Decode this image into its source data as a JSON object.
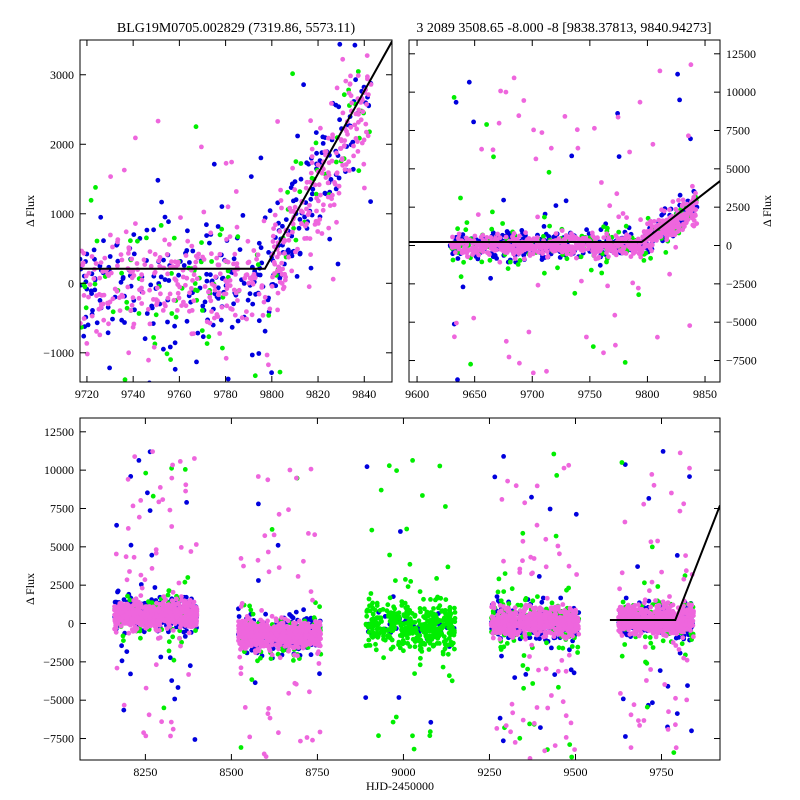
{
  "chart_data": [
    {
      "id": "top-left",
      "type": "scatter",
      "title": "BLG19M0705.002829 (7319.86, 5573.11)",
      "xlabel": "",
      "ylabel": "Δ Flux",
      "xlim": [
        9717,
        9852
      ],
      "ylim": [
        -1420,
        3500
      ],
      "xticks": [
        9720,
        9740,
        9760,
        9780,
        9800,
        9820,
        9840
      ],
      "yticks": [
        -1000,
        0,
        1000,
        2000,
        3000
      ],
      "ytick_side": "left",
      "series_colors": [
        "#0000dd",
        "#00ee00",
        "#ee66dd"
      ],
      "model": {
        "x": [
          9717,
          9797,
          9852
        ],
        "y": [
          210,
          210,
          3480
        ]
      },
      "segments": [
        {
          "x0": 9717,
          "x1": 9800,
          "base": 0,
          "slope": 0,
          "spread": [
            450,
            500,
            350
          ],
          "n": [
            190,
            70,
            260
          ],
          "outlier": 0.1
        },
        {
          "x0": 9800,
          "x1": 9843,
          "base": 200,
          "slope": 60,
          "spread": [
            450,
            450,
            400
          ],
          "n": [
            110,
            40,
            200
          ],
          "outlier": 0.08
        }
      ]
    },
    {
      "id": "top-right",
      "type": "scatter",
      "title": "3 2089 3508.65 -8.000 -8 [9838.37813, 9840.94273]",
      "xlabel": "",
      "ylabel": "Δ Flux",
      "xlim": [
        9593,
        9863
      ],
      "ylim": [
        -8900,
        13400
      ],
      "xticks": [
        9600,
        9650,
        9700,
        9750,
        9800,
        9850
      ],
      "yticks": [
        -7500,
        -5000,
        -2500,
        0,
        2500,
        5000,
        7500,
        10000,
        12500
      ],
      "ytick_side": "right",
      "series_colors": [
        "#0000dd",
        "#00ee00",
        "#ee66dd"
      ],
      "model": {
        "x": [
          9593,
          9795,
          9863
        ],
        "y": [
          230,
          230,
          4200
        ]
      },
      "segments": [
        {
          "x0": 9628,
          "x1": 9797,
          "base": 0,
          "slope": 0,
          "spread": [
            420,
            700,
            350
          ],
          "n": [
            320,
            120,
            520
          ],
          "outlier": 0.08
        },
        {
          "x0": 9797,
          "x1": 9843,
          "base": 300,
          "slope": 48,
          "spread": [
            500,
            500,
            450
          ],
          "n": [
            110,
            40,
            200
          ],
          "outlier": 0.06
        }
      ]
    },
    {
      "id": "bottom",
      "type": "scatter",
      "title": "",
      "xlabel": "HJD-2450000",
      "ylabel": "Δ Flux",
      "xlim": [
        8060,
        9920
      ],
      "ylim": [
        -8900,
        13400
      ],
      "xticks": [
        8250,
        8500,
        8750,
        9000,
        9250,
        9500,
        9750
      ],
      "yticks": [
        -7500,
        -5000,
        -2500,
        0,
        2500,
        5000,
        7500,
        10000,
        12500
      ],
      "ytick_side": "left",
      "series_colors": [
        "#0000dd",
        "#00ee00",
        "#ee66dd"
      ],
      "model": {
        "x": [
          9600,
          9790,
          9920
        ],
        "y": [
          230,
          230,
          7700
        ]
      },
      "segments": [
        {
          "x0": 8160,
          "x1": 8400,
          "base": 600,
          "slope": 0,
          "spread": [
            550,
            900,
            450
          ],
          "n": [
            240,
            90,
            620
          ],
          "outlier": 0.08
        },
        {
          "x0": 8520,
          "x1": 8760,
          "base": -700,
          "slope": 0,
          "spread": [
            550,
            900,
            450
          ],
          "n": [
            240,
            90,
            620
          ],
          "outlier": 0.08
        },
        {
          "x0": 8890,
          "x1": 9150,
          "base": -200,
          "slope": 0,
          "spread": [
            600,
            800,
            400
          ],
          "n": [
            60,
            400,
            0
          ],
          "outlier": 0.1
        },
        {
          "x0": 9255,
          "x1": 9510,
          "base": 100,
          "slope": 0,
          "spread": [
            550,
            900,
            450
          ],
          "n": [
            240,
            150,
            620
          ],
          "outlier": 0.08
        },
        {
          "x0": 9625,
          "x1": 9843,
          "base": 200,
          "slope": 0,
          "spread": [
            550,
            900,
            450
          ],
          "n": [
            240,
            90,
            620
          ],
          "outlier": 0.08
        }
      ]
    }
  ]
}
